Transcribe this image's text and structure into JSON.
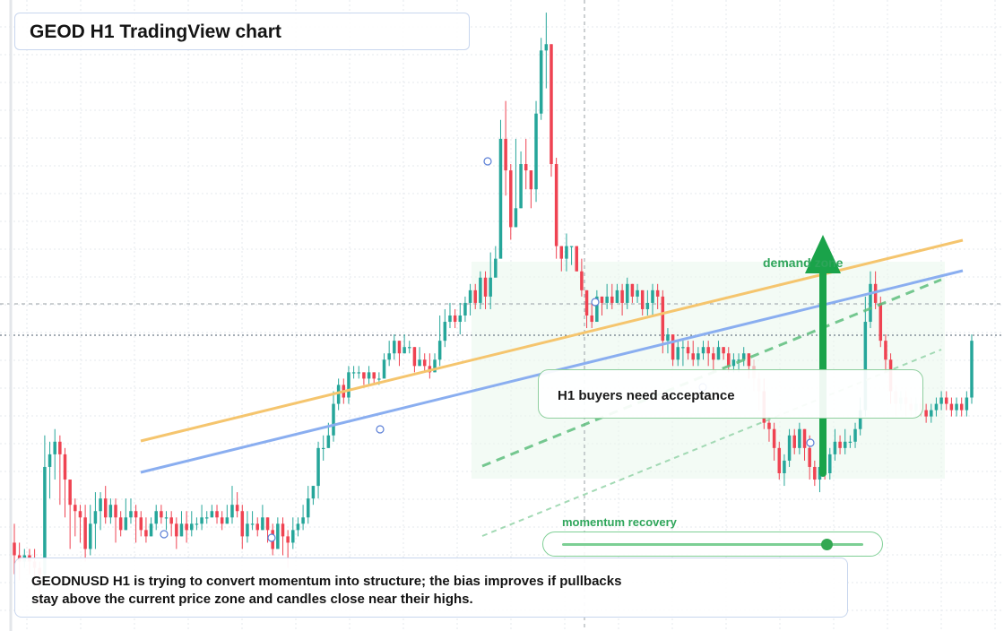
{
  "title": "GEOD H1 TradingView chart",
  "callout": "H1 buyers need acceptance",
  "demand_zone_label": "demand zone",
  "momentum": {
    "label": "momentum recovery",
    "level": 0.88
  },
  "summary": {
    "line1": "GEODNUSD H1 is trying to convert momentum into structure; the bias improves if pullbacks",
    "line2": "stay above the current price zone and candles close near their highs."
  },
  "colors": {
    "up": "#26a69a",
    "down": "#ef4352",
    "trend_orange": "#f5c56e",
    "trend_blue": "#8aaef0",
    "green": "#2ea55a",
    "zone_fill": "#eaf7ec"
  },
  "chart_data": {
    "type": "candlestick",
    "symbol": "GEODNUSD",
    "timeframe": "H1",
    "grid": true,
    "values_units": "relative price (0 = chart bottom, 100 = chart top)",
    "candles": [
      [
        14,
        12,
        17,
        9
      ],
      [
        12,
        11,
        14,
        8
      ],
      [
        11,
        12,
        13,
        10
      ],
      [
        12,
        11,
        13,
        9
      ],
      [
        11,
        10,
        13,
        7
      ],
      [
        10,
        9,
        11,
        4
      ],
      [
        9,
        26,
        31,
        8
      ],
      [
        26,
        28,
        30,
        21
      ],
      [
        28,
        30,
        32,
        24
      ],
      [
        30,
        28,
        31,
        20
      ],
      [
        28,
        24,
        29,
        18
      ],
      [
        24,
        20,
        24,
        13
      ],
      [
        20,
        19,
        21,
        15
      ],
      [
        19,
        18,
        20,
        14
      ],
      [
        18,
        13,
        20,
        11
      ],
      [
        13,
        17,
        20,
        12
      ],
      [
        17,
        19,
        22,
        13
      ],
      [
        19,
        21,
        22,
        16
      ],
      [
        21,
        18,
        23,
        17
      ],
      [
        18,
        20,
        21,
        17
      ],
      [
        20,
        18,
        21,
        14
      ],
      [
        18,
        16,
        19,
        15
      ],
      [
        16,
        18,
        21,
        16
      ],
      [
        18,
        19,
        21,
        17
      ],
      [
        19,
        18,
        20,
        14
      ],
      [
        18,
        16,
        19,
        15
      ],
      [
        16,
        15,
        18,
        14
      ],
      [
        15,
        17,
        18,
        15
      ],
      [
        17,
        19,
        20,
        16
      ],
      [
        19,
        18,
        20,
        17
      ],
      [
        18,
        18,
        19,
        16
      ],
      [
        18,
        17,
        19,
        15
      ],
      [
        17,
        15,
        18,
        13
      ],
      [
        15,
        17,
        19,
        15
      ],
      [
        17,
        16,
        19,
        14
      ],
      [
        16,
        17,
        19,
        15
      ],
      [
        17,
        17,
        18,
        16
      ],
      [
        17,
        18,
        20,
        16
      ],
      [
        18,
        18,
        19,
        17
      ],
      [
        18,
        19,
        20,
        18
      ],
      [
        19,
        18,
        20,
        17
      ],
      [
        18,
        17,
        19,
        16
      ],
      [
        17,
        18,
        20,
        17
      ],
      [
        18,
        20,
        23,
        17
      ],
      [
        20,
        19,
        22,
        18
      ],
      [
        19,
        15,
        20,
        13
      ],
      [
        15,
        17,
        19,
        14
      ],
      [
        17,
        17,
        19,
        16
      ],
      [
        17,
        16,
        18,
        15
      ],
      [
        16,
        18,
        20,
        16
      ],
      [
        18,
        16,
        18,
        14
      ],
      [
        16,
        13,
        17,
        12
      ],
      [
        13,
        17,
        18,
        13
      ],
      [
        17,
        15,
        18,
        12
      ],
      [
        15,
        14,
        16,
        10
      ],
      [
        14,
        16,
        18,
        13
      ],
      [
        16,
        17,
        18,
        15
      ],
      [
        17,
        18,
        20,
        16
      ],
      [
        18,
        21,
        23,
        17
      ],
      [
        21,
        23,
        23,
        20
      ],
      [
        23,
        29,
        30,
        21
      ],
      [
        29,
        29,
        31,
        27
      ],
      [
        29,
        31,
        33,
        29
      ],
      [
        31,
        36,
        38,
        30
      ],
      [
        36,
        39,
        40,
        35
      ],
      [
        39,
        37,
        40,
        36
      ],
      [
        37,
        41,
        42,
        36
      ],
      [
        41,
        41,
        42,
        40
      ],
      [
        41,
        41,
        42,
        40
      ],
      [
        41,
        40,
        41,
        39
      ],
      [
        40,
        41,
        42,
        39
      ],
      [
        41,
        40,
        41,
        39
      ],
      [
        40,
        40,
        41,
        39
      ],
      [
        40,
        43,
        44,
        41
      ],
      [
        43,
        44,
        46,
        42
      ],
      [
        44,
        46,
        47,
        43
      ],
      [
        46,
        44,
        46,
        42
      ],
      [
        44,
        45,
        47,
        44
      ],
      [
        45,
        45,
        46,
        44
      ],
      [
        45,
        42,
        45,
        41
      ],
      [
        42,
        43,
        45,
        42
      ],
      [
        43,
        42,
        44,
        41
      ],
      [
        42,
        41,
        44,
        40
      ],
      [
        41,
        43,
        44,
        41
      ],
      [
        43,
        46,
        50,
        42
      ],
      [
        46,
        49,
        51,
        45
      ],
      [
        49,
        50,
        52,
        48
      ],
      [
        50,
        49,
        51,
        48
      ],
      [
        49,
        50,
        52,
        47
      ],
      [
        50,
        52,
        53,
        49
      ],
      [
        52,
        54,
        55,
        50
      ],
      [
        54,
        52,
        55,
        51
      ],
      [
        52,
        56,
        57,
        51
      ],
      [
        56,
        53,
        57,
        51
      ],
      [
        53,
        56,
        60,
        51
      ],
      [
        56,
        59,
        61,
        57
      ],
      [
        59,
        78,
        81,
        62
      ],
      [
        78,
        73,
        84,
        69
      ],
      [
        73,
        64,
        74,
        62
      ],
      [
        64,
        67,
        78,
        64
      ],
      [
        67,
        74,
        76,
        67
      ],
      [
        74,
        73,
        78,
        70
      ],
      [
        73,
        70,
        73,
        67
      ],
      [
        70,
        82,
        84,
        68
      ],
      [
        82,
        92,
        94,
        81
      ],
      [
        92,
        93,
        98,
        86
      ],
      [
        93,
        74,
        93,
        72
      ],
      [
        74,
        61,
        75,
        59
      ],
      [
        61,
        59,
        61,
        57
      ],
      [
        59,
        61,
        63,
        57
      ],
      [
        61,
        61,
        61,
        58
      ],
      [
        61,
        57,
        61,
        57
      ],
      [
        57,
        54,
        59,
        53
      ],
      [
        54,
        50,
        54,
        48
      ],
      [
        50,
        49,
        52,
        48
      ],
      [
        49,
        53,
        54,
        50
      ],
      [
        53,
        52,
        53,
        50
      ],
      [
        52,
        53,
        55,
        51
      ],
      [
        53,
        52,
        55,
        51
      ],
      [
        52,
        54,
        55,
        52
      ],
      [
        54,
        52,
        55,
        50
      ],
      [
        52,
        55,
        56,
        51
      ],
      [
        55,
        53,
        55,
        52
      ],
      [
        53,
        54,
        55,
        52
      ],
      [
        54,
        51,
        54,
        50
      ],
      [
        51,
        52,
        54,
        50
      ],
      [
        52,
        54,
        55,
        50
      ],
      [
        54,
        53,
        55,
        51
      ],
      [
        53,
        46,
        54,
        44
      ],
      [
        46,
        47,
        48,
        44
      ],
      [
        47,
        43,
        47,
        42
      ],
      [
        43,
        45,
        46,
        42
      ],
      [
        45,
        45,
        46,
        42
      ],
      [
        45,
        44,
        46,
        43
      ],
      [
        44,
        43,
        46,
        42
      ],
      [
        43,
        44,
        45,
        42
      ],
      [
        44,
        45,
        46,
        43
      ],
      [
        45,
        44,
        46,
        42
      ],
      [
        44,
        43,
        45,
        41
      ],
      [
        43,
        45,
        46,
        43
      ],
      [
        45,
        44,
        45,
        43
      ],
      [
        44,
        42,
        45,
        41
      ],
      [
        42,
        43,
        44,
        41
      ],
      [
        43,
        43,
        44,
        41
      ],
      [
        43,
        44,
        45,
        42
      ],
      [
        44,
        42,
        44,
        40
      ],
      [
        42,
        40,
        43,
        38
      ],
      [
        40,
        38,
        41,
        35
      ],
      [
        38,
        33,
        40,
        32
      ],
      [
        33,
        32,
        34,
        30
      ],
      [
        32,
        29,
        33,
        27
      ],
      [
        29,
        25,
        30,
        24
      ],
      [
        25,
        27,
        28,
        23
      ],
      [
        27,
        31,
        32,
        26
      ],
      [
        31,
        29,
        32,
        28
      ],
      [
        29,
        32,
        33,
        28
      ],
      [
        32,
        29,
        32,
        27
      ],
      [
        29,
        26,
        31,
        24
      ],
      [
        26,
        24,
        27,
        23
      ],
      [
        24,
        26,
        27,
        22
      ],
      [
        26,
        25,
        28,
        24
      ],
      [
        25,
        28,
        29,
        24
      ],
      [
        28,
        30,
        32,
        27
      ],
      [
        30,
        29,
        31,
        28
      ],
      [
        29,
        30,
        32,
        28
      ],
      [
        30,
        30,
        31,
        29
      ],
      [
        30,
        32,
        33,
        29
      ],
      [
        32,
        35,
        37,
        31
      ],
      [
        35,
        49,
        53,
        34
      ],
      [
        49,
        55,
        57,
        48
      ],
      [
        55,
        52,
        57,
        51
      ],
      [
        52,
        46,
        53,
        45
      ],
      [
        46,
        43,
        47,
        41
      ],
      [
        43,
        38,
        44,
        36
      ],
      [
        38,
        36,
        39,
        34
      ],
      [
        36,
        37,
        38,
        35
      ],
      [
        37,
        36,
        38,
        34
      ],
      [
        36,
        35,
        37,
        34
      ],
      [
        35,
        36,
        37,
        34
      ],
      [
        36,
        35,
        37,
        34
      ],
      [
        35,
        34,
        36,
        33
      ],
      [
        34,
        35,
        36,
        33
      ],
      [
        35,
        36,
        37,
        34
      ],
      [
        36,
        37,
        38,
        35
      ],
      [
        37,
        36,
        38,
        35
      ],
      [
        36,
        35,
        37,
        34
      ],
      [
        35,
        36,
        37,
        34
      ],
      [
        36,
        35,
        37,
        34
      ],
      [
        35,
        37,
        38,
        34
      ],
      [
        37,
        46,
        47,
        36
      ]
    ],
    "trendlines": [
      {
        "name": "",
        "color": "orange",
        "from": [
          6,
          29
        ],
        "to": [
          179,
          62
        ]
      },
      {
        "name": "",
        "color": "blue",
        "from": [
          6,
          24
        ],
        "to": [
          179,
          56
        ]
      }
    ],
    "markers": [
      "sell-arrow",
      "buy-arrow"
    ],
    "annotations": [
      "H1 buyers need acceptance",
      "demand zone",
      "momentum recovery"
    ]
  }
}
